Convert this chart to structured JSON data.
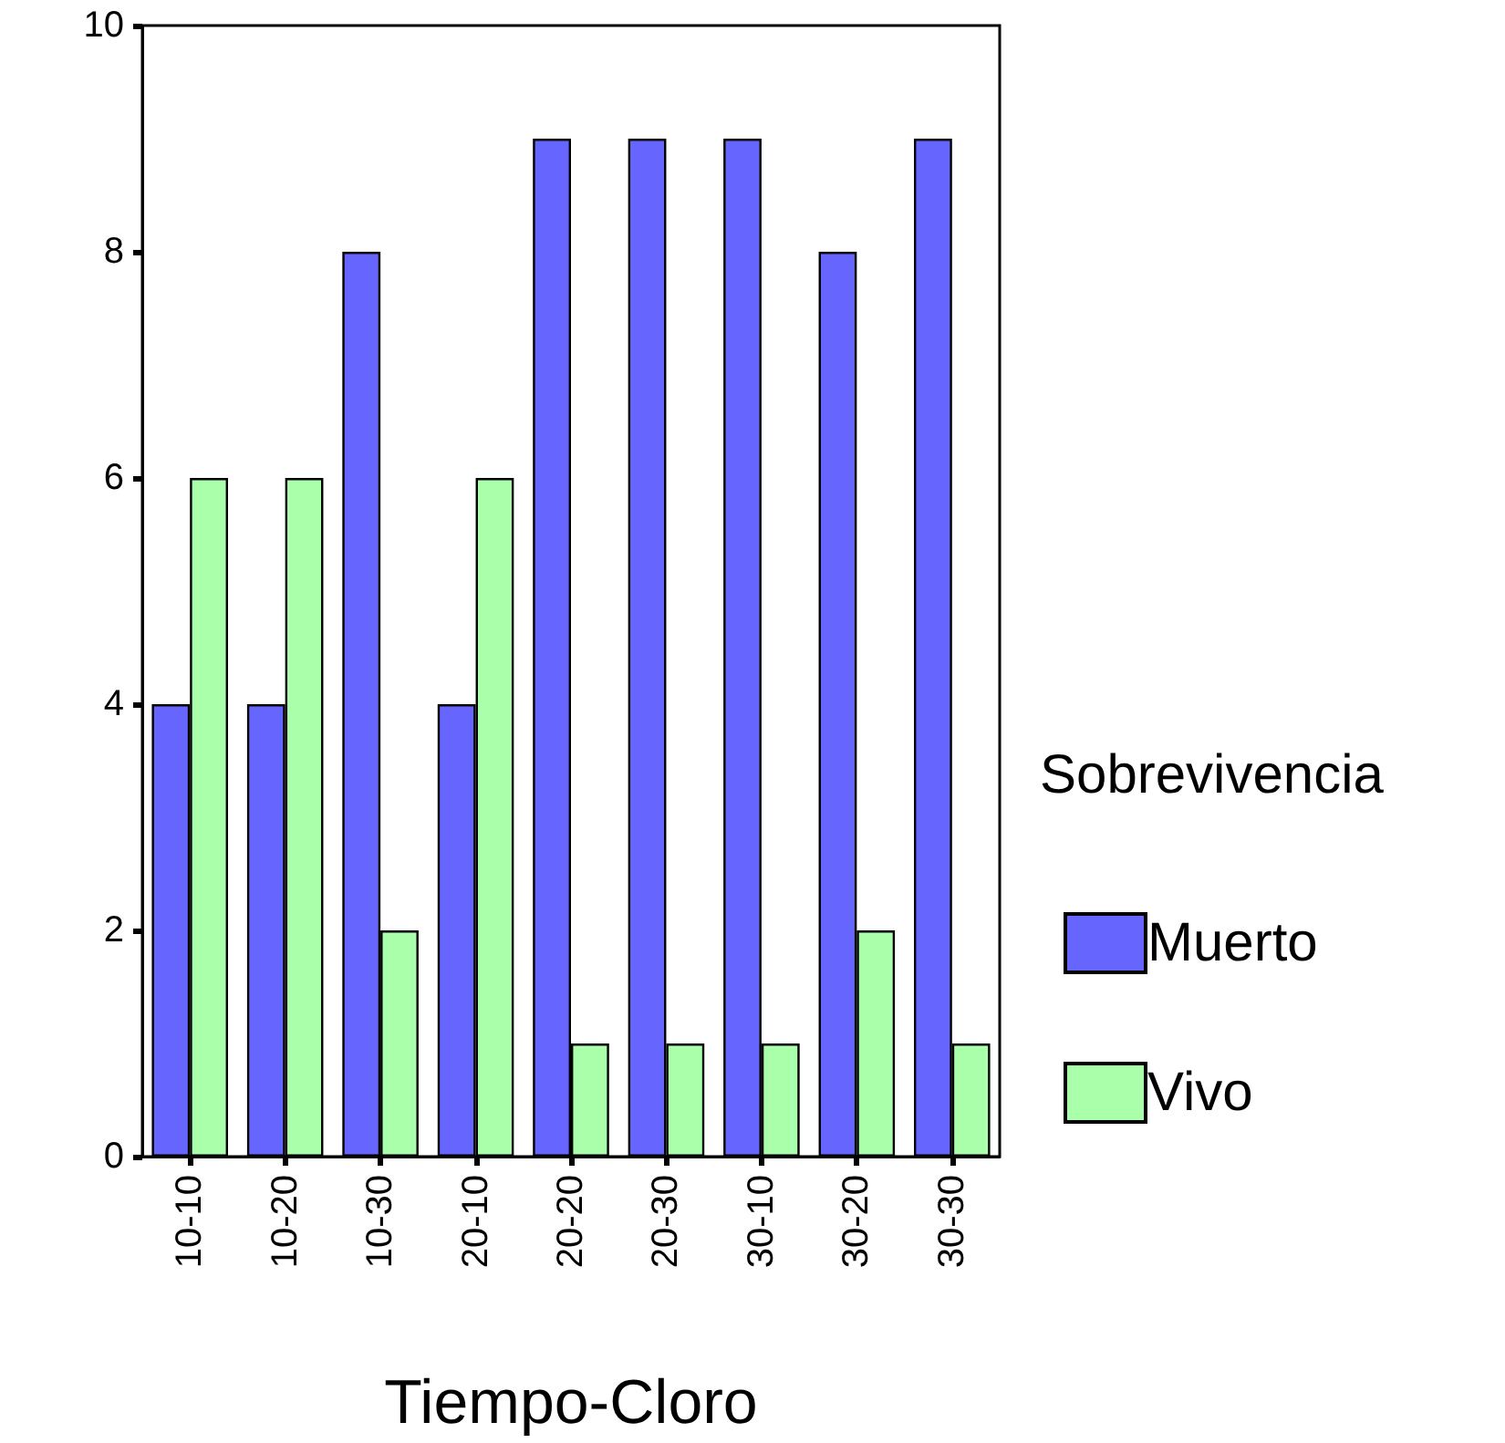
{
  "chart_data": {
    "type": "bar",
    "xlabel": "Tiempo-Cloro",
    "legend_title": "Sobrevivencia",
    "categories": [
      "10-10",
      "10-20",
      "10-30",
      "20-10",
      "20-20",
      "20-30",
      "30-10",
      "30-20",
      "30-30"
    ],
    "series": [
      {
        "name": "Muerto",
        "color": "#6666ff",
        "values": [
          4,
          4,
          8,
          4,
          9,
          9,
          9,
          8,
          9
        ]
      },
      {
        "name": "Vivo",
        "color": "#aaffaa",
        "values": [
          6,
          6,
          2,
          6,
          1,
          1,
          1,
          2,
          1
        ]
      }
    ],
    "ylim": [
      0,
      10
    ],
    "yticks": [
      0,
      2,
      4,
      6,
      8,
      10
    ],
    "grid": false,
    "legend": "right"
  }
}
